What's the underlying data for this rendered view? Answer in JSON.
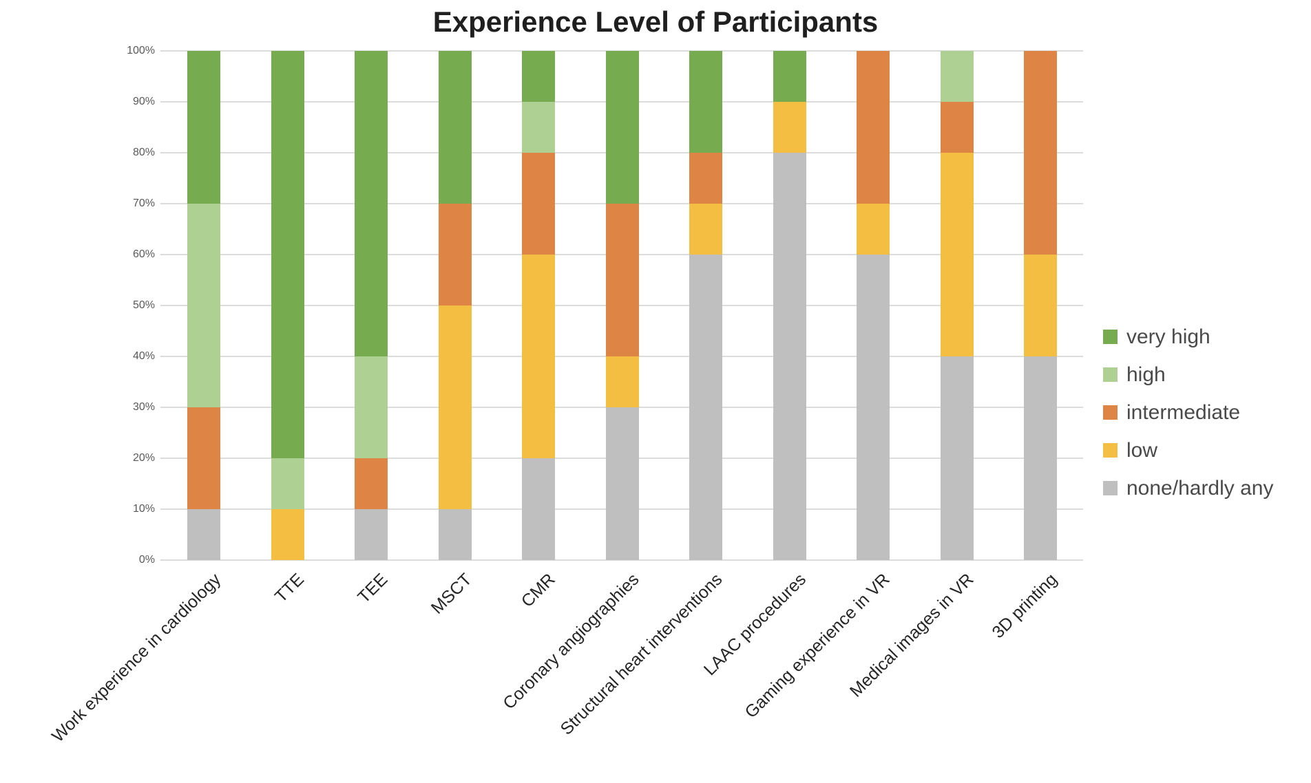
{
  "title": "Experience Level of Participants",
  "chart_data": {
    "type": "bar",
    "stacked": true,
    "orientation": "vertical",
    "title": "Experience Level of Participants",
    "xlabel": "",
    "ylabel": "",
    "ylim": [
      0,
      100
    ],
    "grid": true,
    "legend_position": "right",
    "yticks": [
      "0%",
      "10%",
      "20%",
      "30%",
      "40%",
      "50%",
      "60%",
      "70%",
      "80%",
      "90%",
      "100%"
    ],
    "categories": [
      "Work experience in cardiology",
      "TTE",
      "TEE",
      "MSCT",
      "CMR",
      "Coronary angiographies",
      "Structural heart interventions",
      "LAAC procedures",
      "Gaming experience in VR",
      "Medical images in VR",
      "3D printing"
    ],
    "series": [
      {
        "name": "none/hardly any",
        "color": "#bfbfbf",
        "values": [
          10,
          0,
          10,
          10,
          20,
          30,
          60,
          80,
          60,
          40,
          40
        ]
      },
      {
        "name": "low",
        "color": "#f3be41",
        "values": [
          0,
          10,
          0,
          40,
          40,
          10,
          10,
          10,
          10,
          40,
          20
        ]
      },
      {
        "name": "intermediate",
        "color": "#de8546",
        "values": [
          20,
          0,
          10,
          20,
          20,
          30,
          10,
          0,
          30,
          10,
          40
        ]
      },
      {
        "name": "high",
        "color": "#afd093",
        "values": [
          40,
          10,
          20,
          0,
          10,
          0,
          0,
          0,
          0,
          10,
          0
        ]
      },
      {
        "name": "very high",
        "color": "#76ab4f",
        "values": [
          30,
          80,
          60,
          30,
          10,
          30,
          20,
          10,
          0,
          0,
          0
        ]
      }
    ],
    "legend": [
      {
        "label": "very high",
        "color": "#76ab4f"
      },
      {
        "label": "high",
        "color": "#afd093"
      },
      {
        "label": "intermediate",
        "color": "#de8546"
      },
      {
        "label": "low",
        "color": "#f3be41"
      },
      {
        "label": "none/hardly any",
        "color": "#bfbfbf"
      }
    ],
    "colors": {
      "gridline": "#dcdcdc",
      "tick_text": "#595959",
      "axis_text": "#262626",
      "legend_text": "#4a4a4a",
      "title_text": "#1f1f1f"
    }
  }
}
